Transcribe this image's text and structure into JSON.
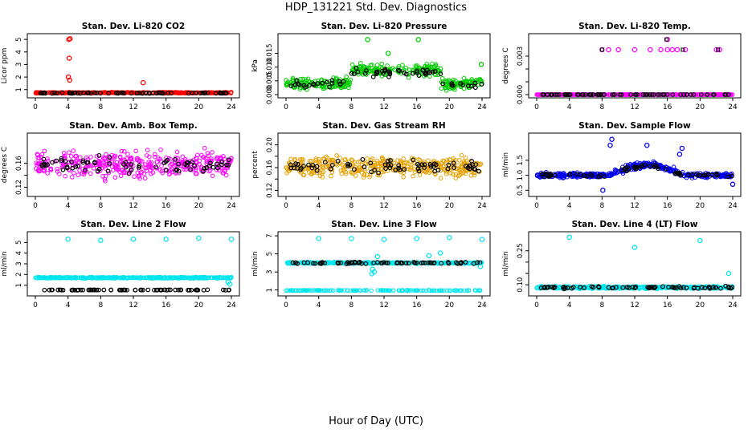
{
  "title": "HDP_131221  Std. Dev. Diagnostics",
  "xlabel": "Hour of Day (UTC)",
  "colors": {
    "black": "#000000",
    "axis": "#000000"
  },
  "chart_data": [
    {
      "type": "scatter",
      "title": "Stan. Dev. Li-820 CO2",
      "ylabel": "Licor ppm",
      "xlim": [
        0,
        24
      ],
      "ylim": [
        0.6,
        5.2
      ],
      "xticks": [
        0,
        4,
        8,
        12,
        16,
        20,
        24
      ],
      "yticks": [
        1,
        2,
        3,
        4,
        5
      ],
      "ytick_labels": [
        "1",
        "2",
        "3",
        "4",
        "5"
      ],
      "color": "#ff0000",
      "series": [
        {
          "name": "main",
          "base": 0.75,
          "spread": 0.06
        },
        {
          "name": "black",
          "base": 0.72,
          "spread": 0.05
        }
      ],
      "outliers": [
        [
          4.1,
          5.0
        ],
        [
          4.25,
          5.05
        ],
        [
          4.15,
          3.5
        ],
        [
          4.05,
          2.0
        ],
        [
          4.2,
          1.75
        ],
        [
          13.2,
          1.55
        ]
      ]
    },
    {
      "type": "scatter",
      "title": "Stan. Dev. Li-820 Pressure",
      "ylabel": "kPa",
      "xlim": [
        0,
        24
      ],
      "ylim": [
        0,
        0.021
      ],
      "xticks": [
        0,
        4,
        8,
        12,
        16,
        20,
        24
      ],
      "yticks": [
        0,
        0.005,
        0.01,
        0.015
      ],
      "ytick_labels": [
        "0.000",
        "0.005",
        "0.010",
        "0.015"
      ],
      "color": "#00cc00",
      "series": [
        {
          "name": "main",
          "base": 0.004,
          "spread": 0.003
        },
        {
          "name": "black",
          "base": 0.004,
          "spread": 0.002
        }
      ],
      "outliers": [
        [
          10,
          0.02
        ],
        [
          16.2,
          0.02
        ],
        [
          12.5,
          0.015
        ],
        [
          23.9,
          0.011
        ]
      ]
    },
    {
      "type": "scatter",
      "title": "Stan. Dev. Li-820 Temp.",
      "ylabel": "degrees C",
      "xlim": [
        0,
        24
      ],
      "ylim": [
        0,
        0.0045
      ],
      "xticks": [
        0,
        4,
        8,
        12,
        16,
        20,
        24
      ],
      "yticks": [
        0,
        0.001,
        0.002,
        0.003
      ],
      "ytick_labels": [
        "0.000",
        "",
        "",
        "0.003"
      ],
      "color": "#ff00ff",
      "series": [
        {
          "name": "main",
          "base": 0.0,
          "spread": 0.0
        },
        {
          "name": "black",
          "base": 0.0,
          "spread": 0.0
        }
      ],
      "outliers": [
        [
          8,
          0.0035
        ],
        [
          8.8,
          0.0035
        ],
        [
          10,
          0.0035
        ],
        [
          12,
          0.0035
        ],
        [
          13.9,
          0.0035
        ],
        [
          15.2,
          0.0035
        ],
        [
          16,
          0.0035
        ],
        [
          16.6,
          0.0035
        ],
        [
          17.2,
          0.0035
        ],
        [
          18.2,
          0.0035
        ],
        [
          22,
          0.0035
        ],
        [
          22.4,
          0.0035
        ],
        [
          16,
          0.0043
        ]
      ]
    },
    {
      "type": "scatter",
      "title": "Stan. Dev. Amb. Box Temp.",
      "ylabel": "degrees C",
      "xlim": [
        0,
        24
      ],
      "ylim": [
        0.11,
        0.205
      ],
      "xticks": [
        0,
        4,
        8,
        12,
        16,
        20,
        24
      ],
      "yticks": [
        0.12,
        0.14,
        0.16
      ],
      "ytick_labels": [
        "0.12",
        "",
        "0.16"
      ],
      "color": "#ff00ff",
      "series": [
        {
          "name": "main",
          "base": 0.158,
          "spread": 0.03
        },
        {
          "name": "black",
          "base": 0.157,
          "spread": 0.018
        }
      ],
      "outliers": []
    },
    {
      "type": "scatter",
      "title": "Stan. Dev. Gas Stream RH",
      "ylabel": "percent",
      "xlim": [
        0,
        24
      ],
      "ylim": [
        0.115,
        0.215
      ],
      "xticks": [
        0,
        4,
        8,
        12,
        16,
        20,
        24
      ],
      "yticks": [
        0.12,
        0.14,
        0.16,
        0.18,
        0.2
      ],
      "ytick_labels": [
        "0.12",
        "",
        "0.16",
        "",
        "0.20"
      ],
      "color": "#e6a000",
      "series": [
        {
          "name": "main",
          "base": 0.162,
          "spread": 0.025
        },
        {
          "name": "black",
          "base": 0.162,
          "spread": 0.015
        }
      ],
      "outliers": []
    },
    {
      "type": "scatter",
      "title": "Stan. Dev. Sample Flow",
      "ylabel": "ml/min",
      "xlim": [
        0,
        24
      ],
      "ylim": [
        0.4,
        2.3
      ],
      "xticks": [
        0,
        4,
        8,
        12,
        16,
        20,
        24
      ],
      "yticks": [
        0.5,
        1.0,
        1.5
      ],
      "ytick_labels": [
        "0.5",
        "1.0",
        "1.5"
      ],
      "color": "#0000ee",
      "series": [
        {
          "name": "main",
          "base": 1.0,
          "spread": 0.12
        },
        {
          "name": "black",
          "base": 1.0,
          "spread": 0.1
        }
      ],
      "outliers": [
        [
          9,
          2.0
        ],
        [
          9.2,
          2.2
        ],
        [
          17.5,
          1.7
        ],
        [
          17.8,
          1.9
        ],
        [
          8.1,
          0.5
        ],
        [
          24,
          0.7
        ],
        [
          13.5,
          2.0
        ]
      ]
    },
    {
      "type": "scatter",
      "title": "Stan. Dev. Line 2 Flow",
      "ylabel": "ml/min",
      "xlim": [
        0,
        24
      ],
      "ylim": [
        0.3,
        5.7
      ],
      "xticks": [
        0,
        4,
        8,
        12,
        16,
        20,
        24
      ],
      "yticks": [
        1,
        2,
        3,
        4,
        5
      ],
      "ytick_labels": [
        "1",
        "2",
        "3",
        "4",
        "5"
      ],
      "color": "#00e5ee",
      "series": [
        {
          "name": "main",
          "base": 1.7,
          "spread": 0.08
        },
        {
          "name": "black",
          "base": 0.55,
          "spread": 0.03
        }
      ],
      "outliers": [
        [
          4,
          5.3
        ],
        [
          8,
          5.2
        ],
        [
          12,
          5.3
        ],
        [
          16,
          5.3
        ],
        [
          20,
          5.4
        ],
        [
          24,
          5.3
        ],
        [
          23.8,
          1.1
        ],
        [
          23.6,
          1.3
        ]
      ]
    },
    {
      "type": "scatter",
      "title": "Stan. Dev. Line 3 Flow",
      "ylabel": "ml/min",
      "xlim": [
        0,
        24
      ],
      "ylim": [
        0.7,
        7.1
      ],
      "xticks": [
        0,
        4,
        8,
        12,
        16,
        20,
        24
      ],
      "yticks": [
        1,
        3,
        5,
        7
      ],
      "ytick_labels": [
        "1",
        "3",
        "5",
        "7"
      ],
      "color": "#00e5ee",
      "series": [
        {
          "name": "main",
          "base": 4.0,
          "spread": 0.12
        },
        {
          "name": "black",
          "base": 4.0,
          "spread": 0.15
        }
      ],
      "outliers": [
        [
          4,
          6.7
        ],
        [
          8,
          6.7
        ],
        [
          12,
          6.6
        ],
        [
          16,
          6.7
        ],
        [
          20,
          6.8
        ],
        [
          24,
          6.6
        ],
        [
          18.9,
          5.1
        ],
        [
          10.5,
          2.8
        ],
        [
          10.8,
          3.0
        ],
        [
          10.6,
          3.3
        ],
        [
          23.8,
          3.6
        ],
        [
          17.5,
          4.8
        ],
        [
          11.2,
          4.7
        ]
      ],
      "baseline": 0.95
    },
    {
      "type": "scatter",
      "title": "Stan. Dev. Line 4 (LT) Flow",
      "ylabel": "ml/min",
      "xlim": [
        0,
        24
      ],
      "ylim": [
        0.065,
        0.32
      ],
      "xticks": [
        0,
        4,
        8,
        12,
        16,
        20,
        24
      ],
      "yticks": [
        0.1,
        0.15,
        0.2,
        0.25
      ],
      "ytick_labels": [
        "0.10",
        "",
        "",
        "0.25"
      ],
      "color": "#00e5ee",
      "series": [
        {
          "name": "main",
          "base": 0.088,
          "spread": 0.008
        },
        {
          "name": "black",
          "base": 0.088,
          "spread": 0.008
        }
      ],
      "outliers": [
        [
          4,
          0.31
        ],
        [
          12,
          0.265
        ],
        [
          20,
          0.295
        ],
        [
          23.5,
          0.15
        ]
      ]
    }
  ]
}
